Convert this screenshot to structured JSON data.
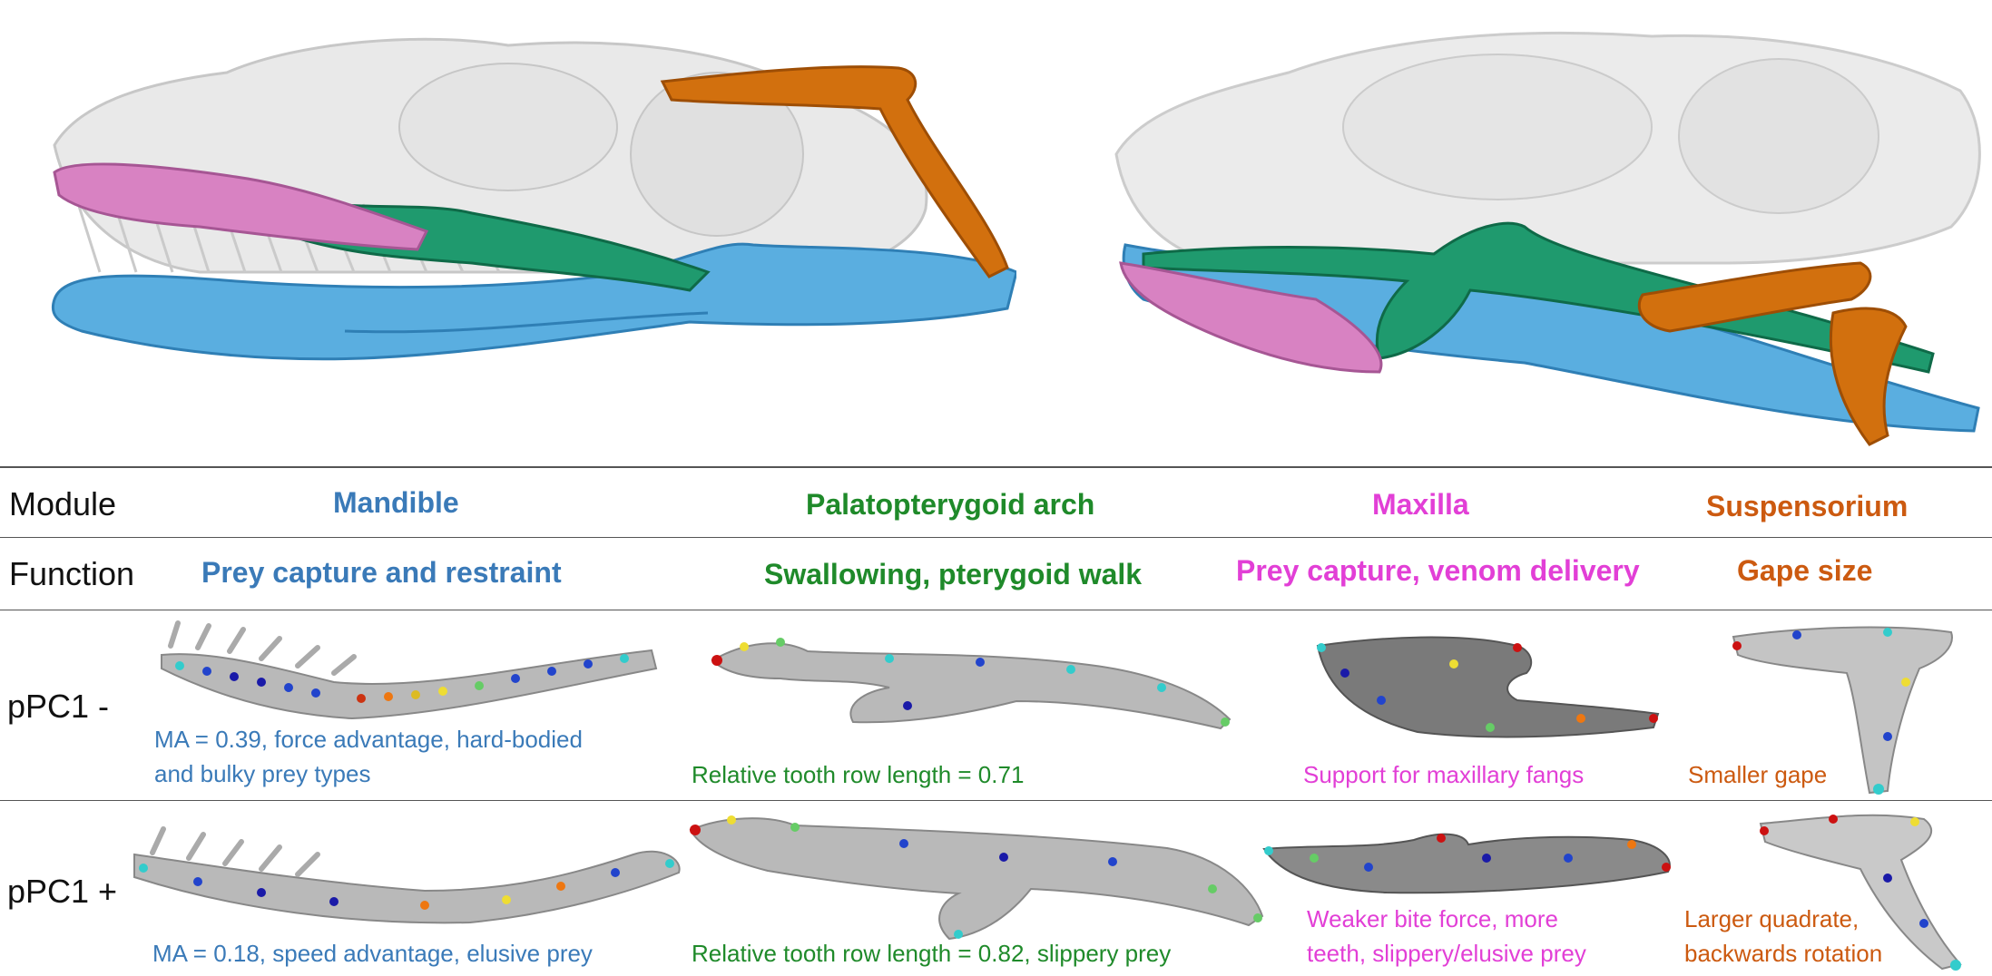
{
  "colors": {
    "mandible": "#5aaee0",
    "palatopterygoid": "#1f9a6e",
    "maxilla": "#d882c2",
    "suspensorium": "#d2700e",
    "skull": "#bfbfbf",
    "label_blue": "#3a7ab8",
    "label_green": "#1f8a2a",
    "label_pink": "#e23fd6",
    "label_orange": "#cc5a10"
  },
  "rows": {
    "module": "Module",
    "function": "Function",
    "pc_minus": "pPC1 -",
    "pc_plus": "pPC1 +"
  },
  "modules": [
    {
      "name": "Mandible",
      "function": "Prey capture and restraint",
      "minus_caption": [
        "MA = 0.39, force advantage, hard-bodied",
        "and bulky prey types"
      ],
      "plus_caption": [
        "MA = 0.18, speed advantage, elusive prey"
      ]
    },
    {
      "name": "Palatopterygoid arch",
      "function": "Swallowing, pterygoid walk",
      "minus_caption": [
        "Relative tooth row length = 0.71"
      ],
      "plus_caption": [
        "Relative tooth row length = 0.82, slippery prey"
      ]
    },
    {
      "name": "Maxilla",
      "function": "Prey capture, venom delivery",
      "minus_caption": [
        "Support for maxillary fangs"
      ],
      "plus_caption": [
        "Weaker bite force, more",
        "teeth, slippery/elusive prey"
      ]
    },
    {
      "name": "Suspensorium",
      "function": "Gape size",
      "minus_caption": [
        "Smaller gape"
      ],
      "plus_caption": [
        "Larger quadrate,",
        "backwards rotation"
      ]
    }
  ]
}
